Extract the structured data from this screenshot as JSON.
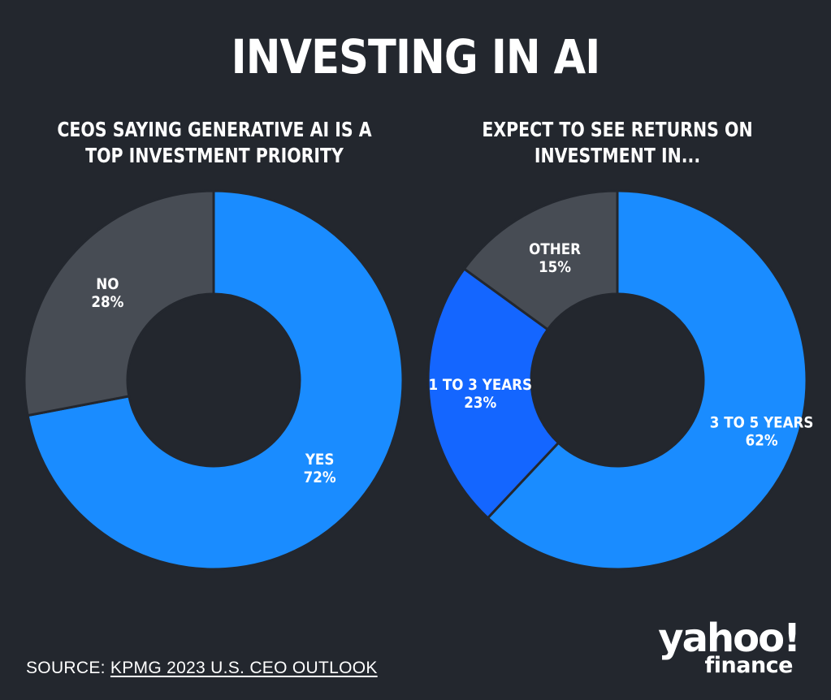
{
  "title": "INVESTING IN AI",
  "colors": {
    "background": "#23272e",
    "blue_light": "#1a8cff",
    "blue_dark": "#1466ff",
    "gray": "#474c54",
    "text": "#ffffff"
  },
  "chart_data": [
    {
      "type": "pie",
      "title": "CEOS SAYING GENERATIVE AI IS A TOP INVESTMENT PRIORITY",
      "slices": [
        {
          "label": "YES",
          "value_label": "72%",
          "value": 72,
          "color": "#1a8cff"
        },
        {
          "label": "NO",
          "value_label": "28%",
          "value": 28,
          "color": "#474c54"
        }
      ]
    },
    {
      "type": "pie",
      "title": "EXPECT TO SEE RETURNS ON INVESTMENT IN...",
      "slices": [
        {
          "label": "3 TO 5 YEARS",
          "value_label": "62%",
          "value": 62,
          "color": "#1a8cff"
        },
        {
          "label": "1 TO 3 YEARS",
          "value_label": "23%",
          "value": 23,
          "color": "#1466ff"
        },
        {
          "label": "OTHER",
          "value_label": "15%",
          "value": 15,
          "color": "#474c54"
        }
      ]
    }
  ],
  "source": {
    "prefix": "SOURCE: ",
    "link_text": "KPMG 2023 U.S. CEO OUTLOOK"
  },
  "logo": {
    "line1": "yahoo!",
    "line2": "finance"
  }
}
